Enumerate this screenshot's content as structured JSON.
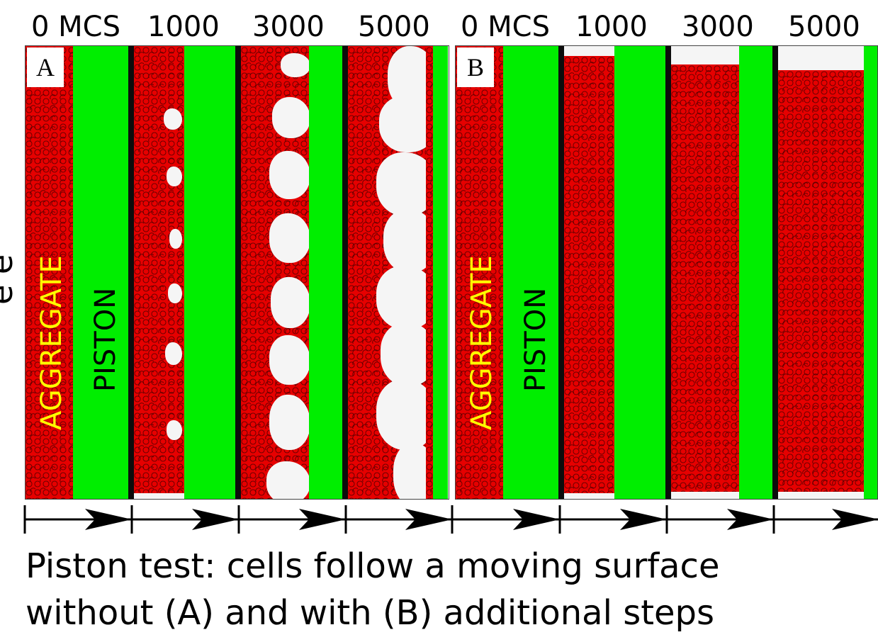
{
  "top_labels": [
    "0 MCS",
    "1000",
    "3000",
    "5000",
    "0 MCS",
    "1000",
    "3000",
    "5000"
  ],
  "clipped_left_text": "e e",
  "panel_a": {
    "letter": "A",
    "aggregate_label": "AGGREGATE",
    "piston_label": "PISTON"
  },
  "panel_b": {
    "letter": "B",
    "aggregate_label": "AGGREGATE",
    "piston_label": "PISTON"
  },
  "caption": {
    "line1": "Piston test: cells follow a moving surface",
    "line2": "without (A) and with (B) additional steps"
  },
  "colors": {
    "cells": "#e60000",
    "piston": "#00ee00",
    "background": "#f5f5f5",
    "aggregate_text": "#ffff00"
  }
}
